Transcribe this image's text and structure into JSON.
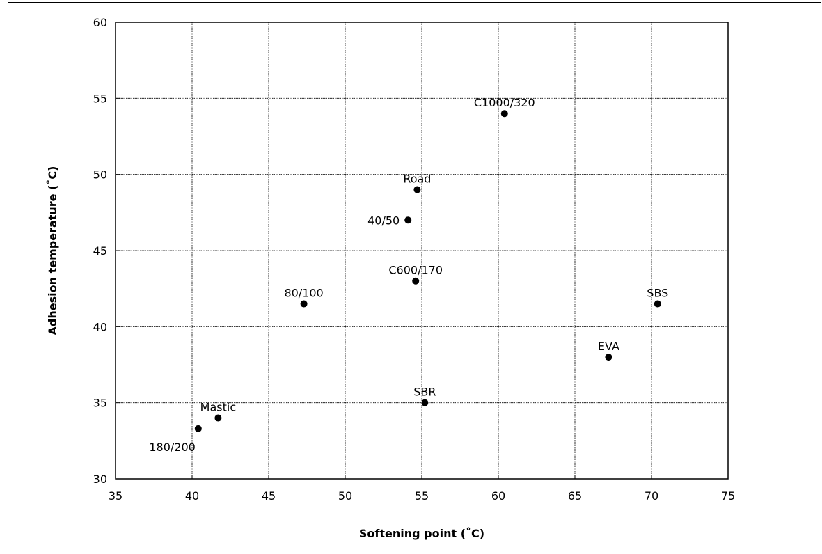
{
  "chart_data": {
    "type": "scatter",
    "title": "",
    "xlabel": "Softening point (˚C)",
    "ylabel": "Adhesion temperature (˚C)",
    "xlim": [
      35,
      75
    ],
    "ylim": [
      30,
      60
    ],
    "x_ticks": [
      35,
      40,
      45,
      50,
      55,
      60,
      65,
      70,
      75
    ],
    "y_ticks": [
      30,
      35,
      40,
      45,
      50,
      55,
      60
    ],
    "grid": true,
    "legend": "none",
    "marker_color": "#000000",
    "points": [
      {
        "label": "180/200",
        "x": 40.4,
        "y": 33.3,
        "label_pos": "below-left"
      },
      {
        "label": "Mastic",
        "x": 41.7,
        "y": 34.0,
        "label_pos": "above"
      },
      {
        "label": "80/100",
        "x": 47.3,
        "y": 41.5,
        "label_pos": "above"
      },
      {
        "label": "40/50",
        "x": 54.1,
        "y": 47.0,
        "label_pos": "left"
      },
      {
        "label": "Road",
        "x": 54.7,
        "y": 49.0,
        "label_pos": "above"
      },
      {
        "label": "C600/170",
        "x": 54.6,
        "y": 43.0,
        "label_pos": "above"
      },
      {
        "label": "SBR",
        "x": 55.2,
        "y": 35.0,
        "label_pos": "above"
      },
      {
        "label": "C1000/320",
        "x": 60.4,
        "y": 54.0,
        "label_pos": "above"
      },
      {
        "label": "EVA",
        "x": 67.2,
        "y": 38.0,
        "label_pos": "above"
      },
      {
        "label": "SBS",
        "x": 70.4,
        "y": 41.5,
        "label_pos": "above"
      }
    ]
  }
}
